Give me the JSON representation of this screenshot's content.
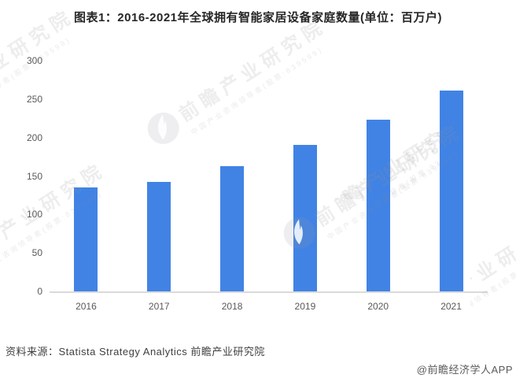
{
  "page": {
    "title": "图表1：2016-2021年全球拥有智能家居设备家庭数量(单位：百万户)"
  },
  "chart_data": {
    "type": "bar",
    "title": "图表1：2016-2021年全球拥有智能家居设备家庭数量(单位：百万户)",
    "unit": "百万户",
    "categories": [
      "2016",
      "2017",
      "2018",
      "2019",
      "2020",
      "2021"
    ],
    "values": [
      135,
      142,
      163,
      191,
      223,
      261
    ],
    "ylim": [
      0,
      300
    ],
    "yticks": [
      0,
      50,
      100,
      150,
      200,
      250,
      300
    ],
    "xlabel": "",
    "ylabel": "",
    "grid": false,
    "legend_position": "none",
    "bar_color": "#4183e4"
  },
  "footer": {
    "source": "资料来源：Statista Strategy Analytics 前瞻产业研究院",
    "credit": "@前瞻经济学人APP"
  },
  "watermark": {
    "brand": "前瞻产业研究院",
    "tagline": "中国产业咨询领导者(股票:839599)"
  },
  "colors": {
    "bar": "#4183e4",
    "axis_line": "#dadada",
    "tick_label": "#595959",
    "title_text": "#262626",
    "source_text": "#3f3f3f"
  }
}
